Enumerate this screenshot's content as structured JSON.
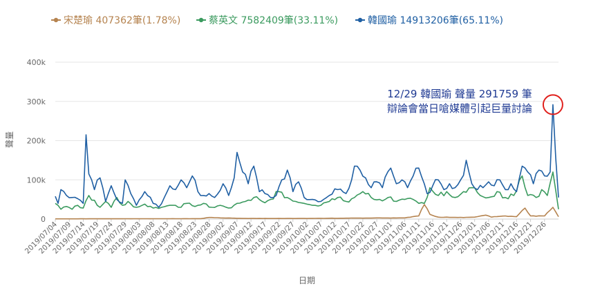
{
  "chart_data": {
    "type": "line",
    "title": "",
    "xlabel": "日期",
    "ylabel": "聲量",
    "ylim": [
      0,
      400000
    ],
    "y_ticks": [
      {
        "value": 0,
        "label": "0"
      },
      {
        "value": 100000,
        "label": "100k"
      },
      {
        "value": 200000,
        "label": "200k"
      },
      {
        "value": 300000,
        "label": "300k"
      },
      {
        "value": 400000,
        "label": "400k"
      }
    ],
    "x_start": "2019-07-04",
    "x_end": "2019-12-31",
    "x_tick_labels": [
      "2019/07/04",
      "2019/07/09",
      "2019/07/14",
      "2019/07/19",
      "2019/07/24",
      "2019/07/29",
      "2019/08/03",
      "2019/08/08",
      "2019/08/13",
      "2019/08/18",
      "2019/08/23",
      "2019/08/28",
      "2019/09/02",
      "2019/09/07",
      "2019/09/12",
      "2019/09/17",
      "2019/09/22",
      "2019/09/27",
      "2019/10/02",
      "2019/10/07",
      "2019/10/12",
      "2019/10/17",
      "2019/10/22",
      "2019/10/27",
      "2019/11/01",
      "2019/11/06",
      "2019/11/11",
      "2019/11/16",
      "2019/11/21",
      "2019/11/26",
      "2019/12/01",
      "2019/12/06",
      "2019/12/11",
      "2019/12/16",
      "2019/12/21",
      "2019/12/26"
    ],
    "grid": true,
    "legend_position": "top",
    "series": [
      {
        "name": "宋楚瑜",
        "legend_label": "宋楚瑜 407362筆(1.78%)",
        "color": "#b5834f",
        "values": [
          {
            "x": "2019-07-04",
            "y": 500
          },
          {
            "x": "2019-08-01",
            "y": 800
          },
          {
            "x": "2019-08-25",
            "y": 1000
          },
          {
            "x": "2019-08-28",
            "y": 4000
          },
          {
            "x": "2019-09-01",
            "y": 3000
          },
          {
            "x": "2019-09-10",
            "y": 1500
          },
          {
            "x": "2019-10-01",
            "y": 1500
          },
          {
            "x": "2019-10-20",
            "y": 2500
          },
          {
            "x": "2019-11-06",
            "y": 3000
          },
          {
            "x": "2019-11-11",
            "y": 8000
          },
          {
            "x": "2019-11-13",
            "y": 37000
          },
          {
            "x": "2019-11-15",
            "y": 12000
          },
          {
            "x": "2019-11-18",
            "y": 5000
          },
          {
            "x": "2019-11-25",
            "y": 4000
          },
          {
            "x": "2019-12-01",
            "y": 5000
          },
          {
            "x": "2019-12-05",
            "y": 10000
          },
          {
            "x": "2019-12-07",
            "y": 5000
          },
          {
            "x": "2019-12-12",
            "y": 8000
          },
          {
            "x": "2019-12-16",
            "y": 6000
          },
          {
            "x": "2019-12-19",
            "y": 28000
          },
          {
            "x": "2019-12-21",
            "y": 8000
          },
          {
            "x": "2019-12-26",
            "y": 8000
          },
          {
            "x": "2019-12-29",
            "y": 30000
          },
          {
            "x": "2019-12-31",
            "y": 6000
          }
        ]
      },
      {
        "name": "蔡英文",
        "legend_label": "蔡英文 7582409筆(33.11%)",
        "color": "#3a9a5e",
        "values": [
          {
            "x": "2019-07-04",
            "y": 40000
          },
          {
            "x": "2019-07-06",
            "y": 25000
          },
          {
            "x": "2019-07-08",
            "y": 32000
          },
          {
            "x": "2019-07-10",
            "y": 25000
          },
          {
            "x": "2019-07-12",
            "y": 35000
          },
          {
            "x": "2019-07-14",
            "y": 28000
          },
          {
            "x": "2019-07-16",
            "y": 60000
          },
          {
            "x": "2019-07-18",
            "y": 48000
          },
          {
            "x": "2019-07-20",
            "y": 30000
          },
          {
            "x": "2019-07-22",
            "y": 45000
          },
          {
            "x": "2019-07-24",
            "y": 30000
          },
          {
            "x": "2019-07-26",
            "y": 55000
          },
          {
            "x": "2019-07-28",
            "y": 35000
          },
          {
            "x": "2019-07-30",
            "y": 45000
          },
          {
            "x": "2019-08-02",
            "y": 30000
          },
          {
            "x": "2019-08-05",
            "y": 38000
          },
          {
            "x": "2019-08-08",
            "y": 28000
          },
          {
            "x": "2019-08-11",
            "y": 30000
          },
          {
            "x": "2019-08-14",
            "y": 35000
          },
          {
            "x": "2019-08-17",
            "y": 30000
          },
          {
            "x": "2019-08-20",
            "y": 40000
          },
          {
            "x": "2019-08-23",
            "y": 32000
          },
          {
            "x": "2019-08-26",
            "y": 40000
          },
          {
            "x": "2019-08-29",
            "y": 30000
          },
          {
            "x": "2019-09-01",
            "y": 35000
          },
          {
            "x": "2019-09-04",
            "y": 28000
          },
          {
            "x": "2019-09-07",
            "y": 40000
          },
          {
            "x": "2019-09-10",
            "y": 45000
          },
          {
            "x": "2019-09-13",
            "y": 55000
          },
          {
            "x": "2019-09-16",
            "y": 45000
          },
          {
            "x": "2019-09-19",
            "y": 50000
          },
          {
            "x": "2019-09-22",
            "y": 70000
          },
          {
            "x": "2019-09-25",
            "y": 55000
          },
          {
            "x": "2019-09-28",
            "y": 45000
          },
          {
            "x": "2019-10-01",
            "y": 40000
          },
          {
            "x": "2019-10-04",
            "y": 35000
          },
          {
            "x": "2019-10-07",
            "y": 35000
          },
          {
            "x": "2019-10-10",
            "y": 45000
          },
          {
            "x": "2019-10-13",
            "y": 55000
          },
          {
            "x": "2019-10-16",
            "y": 45000
          },
          {
            "x": "2019-10-19",
            "y": 55000
          },
          {
            "x": "2019-10-22",
            "y": 70000
          },
          {
            "x": "2019-10-25",
            "y": 55000
          },
          {
            "x": "2019-10-28",
            "y": 50000
          },
          {
            "x": "2019-10-31",
            "y": 55000
          },
          {
            "x": "2019-11-03",
            "y": 45000
          },
          {
            "x": "2019-11-06",
            "y": 50000
          },
          {
            "x": "2019-11-09",
            "y": 50000
          },
          {
            "x": "2019-11-11",
            "y": 40000
          },
          {
            "x": "2019-11-13",
            "y": 40000
          },
          {
            "x": "2019-11-15",
            "y": 80000
          },
          {
            "x": "2019-11-18",
            "y": 60000
          },
          {
            "x": "2019-11-21",
            "y": 70000
          },
          {
            "x": "2019-11-24",
            "y": 55000
          },
          {
            "x": "2019-11-27",
            "y": 70000
          },
          {
            "x": "2019-11-30",
            "y": 80000
          },
          {
            "x": "2019-12-03",
            "y": 60000
          },
          {
            "x": "2019-12-06",
            "y": 55000
          },
          {
            "x": "2019-12-09",
            "y": 70000
          },
          {
            "x": "2019-12-12",
            "y": 55000
          },
          {
            "x": "2019-12-15",
            "y": 60000
          },
          {
            "x": "2019-12-18",
            "y": 110000
          },
          {
            "x": "2019-12-20",
            "y": 60000
          },
          {
            "x": "2019-12-23",
            "y": 55000
          },
          {
            "x": "2019-12-25",
            "y": 75000
          },
          {
            "x": "2019-12-27",
            "y": 60000
          },
          {
            "x": "2019-12-29",
            "y": 120000
          },
          {
            "x": "2019-12-31",
            "y": 25000
          }
        ]
      },
      {
        "name": "韓國瑜",
        "legend_label": "韓國瑜 14913206筆(65.11%)",
        "color": "#1f5fa3",
        "values": [
          {
            "x": "2019-07-04",
            "y": 58000
          },
          {
            "x": "2019-07-05",
            "y": 40000
          },
          {
            "x": "2019-07-06",
            "y": 75000
          },
          {
            "x": "2019-07-08",
            "y": 60000
          },
          {
            "x": "2019-07-10",
            "y": 55000
          },
          {
            "x": "2019-07-12",
            "y": 52000
          },
          {
            "x": "2019-07-14",
            "y": 40000
          },
          {
            "x": "2019-07-15",
            "y": 215000
          },
          {
            "x": "2019-07-16",
            "y": 115000
          },
          {
            "x": "2019-07-18",
            "y": 75000
          },
          {
            "x": "2019-07-20",
            "y": 105000
          },
          {
            "x": "2019-07-22",
            "y": 45000
          },
          {
            "x": "2019-07-24",
            "y": 85000
          },
          {
            "x": "2019-07-26",
            "y": 50000
          },
          {
            "x": "2019-07-28",
            "y": 40000
          },
          {
            "x": "2019-07-29",
            "y": 100000
          },
          {
            "x": "2019-07-31",
            "y": 65000
          },
          {
            "x": "2019-08-02",
            "y": 35000
          },
          {
            "x": "2019-08-05",
            "y": 70000
          },
          {
            "x": "2019-08-08",
            "y": 40000
          },
          {
            "x": "2019-08-10",
            "y": 30000
          },
          {
            "x": "2019-08-12",
            "y": 55000
          },
          {
            "x": "2019-08-14",
            "y": 85000
          },
          {
            "x": "2019-08-16",
            "y": 75000
          },
          {
            "x": "2019-08-18",
            "y": 100000
          },
          {
            "x": "2019-08-20",
            "y": 80000
          },
          {
            "x": "2019-08-22",
            "y": 110000
          },
          {
            "x": "2019-08-24",
            "y": 70000
          },
          {
            "x": "2019-08-26",
            "y": 60000
          },
          {
            "x": "2019-08-28",
            "y": 65000
          },
          {
            "x": "2019-08-30",
            "y": 55000
          },
          {
            "x": "2019-09-02",
            "y": 90000
          },
          {
            "x": "2019-09-04",
            "y": 60000
          },
          {
            "x": "2019-09-06",
            "y": 105000
          },
          {
            "x": "2019-09-07",
            "y": 170000
          },
          {
            "x": "2019-09-09",
            "y": 120000
          },
          {
            "x": "2019-09-11",
            "y": 90000
          },
          {
            "x": "2019-09-13",
            "y": 135000
          },
          {
            "x": "2019-09-15",
            "y": 70000
          },
          {
            "x": "2019-09-17",
            "y": 65000
          },
          {
            "x": "2019-09-19",
            "y": 55000
          },
          {
            "x": "2019-09-21",
            "y": 60000
          },
          {
            "x": "2019-09-23",
            "y": 100000
          },
          {
            "x": "2019-09-25",
            "y": 125000
          },
          {
            "x": "2019-09-27",
            "y": 70000
          },
          {
            "x": "2019-09-29",
            "y": 95000
          },
          {
            "x": "2019-10-01",
            "y": 55000
          },
          {
            "x": "2019-10-04",
            "y": 50000
          },
          {
            "x": "2019-10-07",
            "y": 45000
          },
          {
            "x": "2019-10-10",
            "y": 60000
          },
          {
            "x": "2019-10-13",
            "y": 75000
          },
          {
            "x": "2019-10-16",
            "y": 65000
          },
          {
            "x": "2019-10-18",
            "y": 100000
          },
          {
            "x": "2019-10-19",
            "y": 135000
          },
          {
            "x": "2019-10-21",
            "y": 125000
          },
          {
            "x": "2019-10-23",
            "y": 105000
          },
          {
            "x": "2019-10-25",
            "y": 80000
          },
          {
            "x": "2019-10-27",
            "y": 95000
          },
          {
            "x": "2019-10-29",
            "y": 80000
          },
          {
            "x": "2019-11-01",
            "y": 130000
          },
          {
            "x": "2019-11-03",
            "y": 90000
          },
          {
            "x": "2019-11-05",
            "y": 100000
          },
          {
            "x": "2019-11-07",
            "y": 80000
          },
          {
            "x": "2019-11-09",
            "y": 110000
          },
          {
            "x": "2019-11-11",
            "y": 130000
          },
          {
            "x": "2019-11-14",
            "y": 65000
          },
          {
            "x": "2019-11-16",
            "y": 85000
          },
          {
            "x": "2019-11-18",
            "y": 100000
          },
          {
            "x": "2019-11-20",
            "y": 75000
          },
          {
            "x": "2019-11-22",
            "y": 90000
          },
          {
            "x": "2019-11-24",
            "y": 80000
          },
          {
            "x": "2019-11-26",
            "y": 100000
          },
          {
            "x": "2019-11-28",
            "y": 150000
          },
          {
            "x": "2019-11-30",
            "y": 90000
          },
          {
            "x": "2019-12-02",
            "y": 75000
          },
          {
            "x": "2019-12-04",
            "y": 80000
          },
          {
            "x": "2019-12-06",
            "y": 95000
          },
          {
            "x": "2019-12-08",
            "y": 85000
          },
          {
            "x": "2019-12-10",
            "y": 100000
          },
          {
            "x": "2019-12-12",
            "y": 75000
          },
          {
            "x": "2019-12-14",
            "y": 90000
          },
          {
            "x": "2019-12-16",
            "y": 70000
          },
          {
            "x": "2019-12-18",
            "y": 135000
          },
          {
            "x": "2019-12-20",
            "y": 120000
          },
          {
            "x": "2019-12-22",
            "y": 90000
          },
          {
            "x": "2019-12-24",
            "y": 125000
          },
          {
            "x": "2019-12-26",
            "y": 110000
          },
          {
            "x": "2019-12-28",
            "y": 120000
          },
          {
            "x": "2019-12-29",
            "y": 291759
          },
          {
            "x": "2019-12-31",
            "y": 55000
          }
        ]
      }
    ],
    "annotation": {
      "line1": "12/29 韓國瑜 聲量 291759 筆",
      "line2": "辯論會當日嗆媒體引起巨量討論",
      "x": "2019-12-29",
      "y": 291759,
      "circle_color": "#e0201c",
      "text_color": "#1f3a93"
    }
  }
}
